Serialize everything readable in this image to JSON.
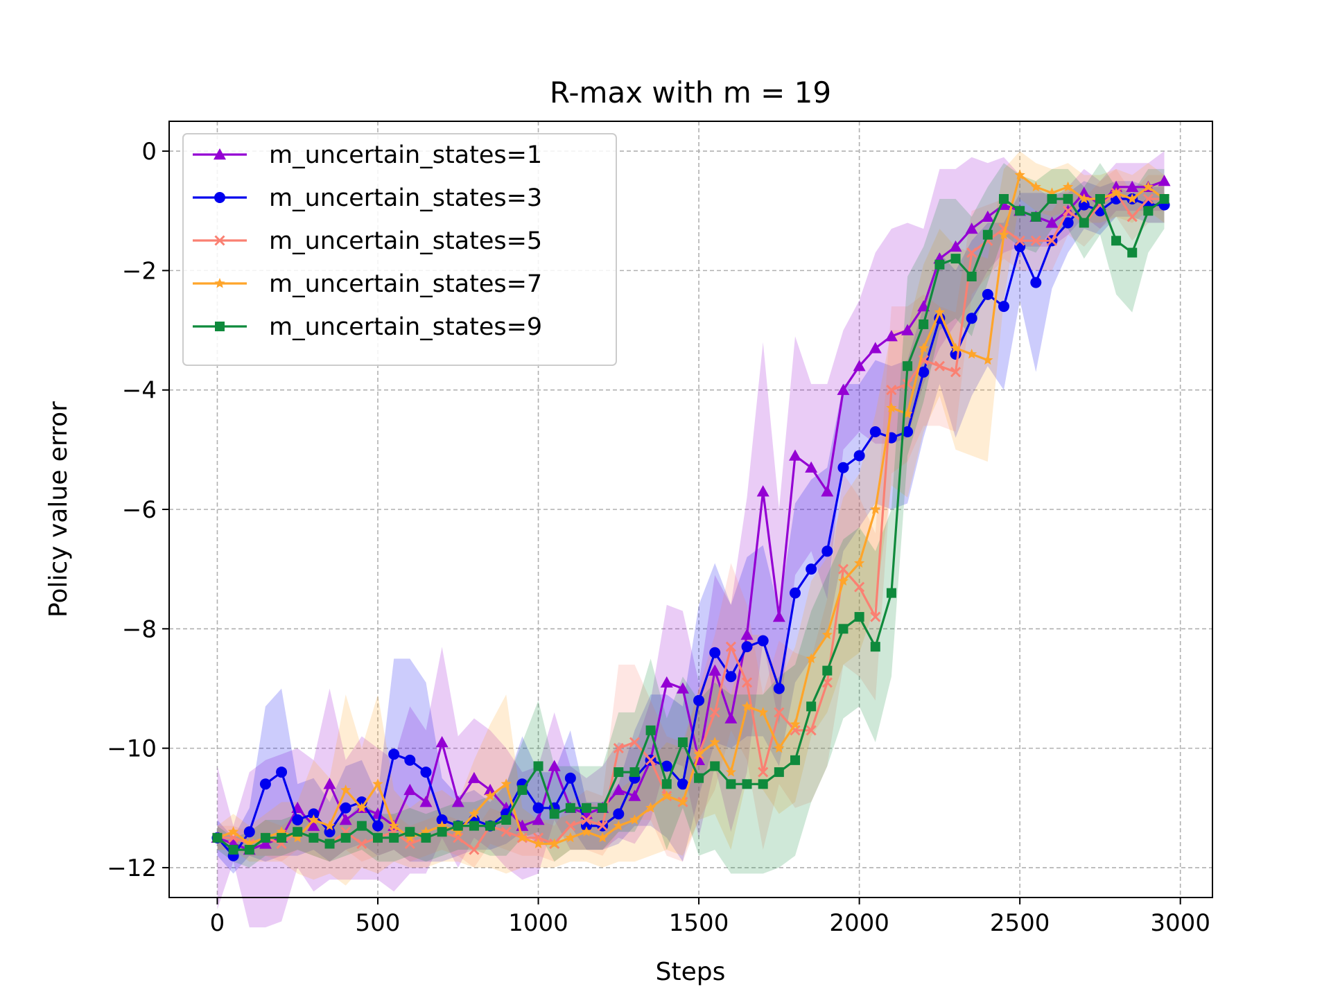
{
  "chart_data": {
    "type": "line",
    "title": "R-max with m = 19",
    "xlabel": "Steps",
    "ylabel": "Policy value error",
    "xlim": [
      -150,
      3100
    ],
    "ylim": [
      -12.5,
      0.5
    ],
    "xticks": [
      0,
      500,
      1000,
      1500,
      2000,
      2500,
      3000
    ],
    "yticks": [
      0,
      -2,
      -4,
      -6,
      -8,
      -10,
      -12
    ],
    "xtick_labels": [
      "0",
      "500",
      "1000",
      "1500",
      "2000",
      "2500",
      "3000"
    ],
    "ytick_labels": [
      "0",
      "−2",
      "−4",
      "−6",
      "−8",
      "−10",
      "−12"
    ],
    "grid": true,
    "legend_position": "top-left",
    "shaded_bands": true,
    "x": [
      0,
      50,
      100,
      150,
      200,
      250,
      300,
      350,
      400,
      450,
      500,
      550,
      600,
      650,
      700,
      750,
      800,
      850,
      900,
      950,
      1000,
      1050,
      1100,
      1150,
      1200,
      1250,
      1300,
      1350,
      1400,
      1450,
      1500,
      1550,
      1600,
      1650,
      1700,
      1750,
      1800,
      1850,
      1900,
      1950,
      2000,
      2050,
      2100,
      2150,
      2200,
      2250,
      2300,
      2350,
      2400,
      2450,
      2500,
      2550,
      2600,
      2650,
      2700,
      2750,
      2800,
      2850,
      2900,
      2950
    ],
    "series": [
      {
        "name": "m_uncertain_states=1",
        "color": "#9400d3",
        "marker": "triangle",
        "values": [
          -11.5,
          -11.6,
          -11.7,
          -11.6,
          -11.5,
          -11.0,
          -11.3,
          -10.6,
          -11.2,
          -11.0,
          -11.1,
          -11.3,
          -10.7,
          -10.9,
          -9.9,
          -10.9,
          -10.5,
          -10.7,
          -11.0,
          -11.3,
          -11.2,
          -10.3,
          -11.0,
          -11.1,
          -11.0,
          -10.7,
          -10.8,
          -10.2,
          -8.9,
          -9.0,
          -10.2,
          -8.7,
          -9.5,
          -8.1,
          -5.7,
          -7.8,
          -5.1,
          -5.3,
          -5.7,
          -4.0,
          -3.6,
          -3.3,
          -3.1,
          -3.0,
          -2.6,
          -1.8,
          -1.6,
          -1.3,
          -1.1,
          -0.9,
          -1.0,
          -1.1,
          -1.2,
          -1.0,
          -0.7,
          -0.9,
          -0.6,
          -0.6,
          -0.6,
          -0.5
        ],
        "band": [
          1.2,
          0.3,
          1.3,
          1.4,
          1.4,
          1.0,
          1.1,
          1.6,
          1.0,
          1.2,
          1.1,
          1.1,
          1.4,
          1.2,
          1.6,
          1.1,
          1.0,
          1.0,
          1.0,
          0.9,
          0.9,
          0.9,
          0.7,
          0.6,
          0.7,
          0.8,
          0.8,
          1.0,
          1.3,
          1.3,
          1.3,
          1.6,
          1.9,
          2.3,
          2.5,
          1.8,
          2.0,
          1.4,
          1.8,
          1.0,
          1.1,
          1.6,
          1.8,
          1.8,
          1.3,
          1.5,
          1.3,
          1.2,
          0.9,
          0.8,
          0.6,
          0.5,
          0.4,
          0.4,
          0.4,
          0.4,
          0.4,
          0.4,
          0.4,
          0.5
        ]
      },
      {
        "name": "m_uncertain_states=3",
        "color": "#0000ee",
        "marker": "circle",
        "values": [
          -11.5,
          -11.8,
          -11.4,
          -10.6,
          -10.4,
          -11.2,
          -11.1,
          -11.4,
          -11.0,
          -10.9,
          -11.3,
          -10.1,
          -10.2,
          -10.4,
          -11.2,
          -11.3,
          -11.2,
          -11.3,
          -11.1,
          -10.6,
          -11.0,
          -11.0,
          -10.5,
          -11.3,
          -11.3,
          -11.1,
          -10.5,
          -10.2,
          -10.3,
          -10.6,
          -9.2,
          -8.4,
          -8.8,
          -8.3,
          -8.2,
          -9.0,
          -7.4,
          -7.0,
          -6.7,
          -5.3,
          -5.1,
          -4.7,
          -4.8,
          -4.7,
          -3.7,
          -2.8,
          -3.4,
          -2.8,
          -2.4,
          -2.6,
          -1.6,
          -2.2,
          -1.5,
          -1.2,
          -0.9,
          -1.0,
          -0.8,
          -0.8,
          -0.9,
          -0.9
        ],
        "band": [
          0.3,
          0.3,
          0.4,
          1.3,
          1.4,
          0.6,
          0.6,
          0.5,
          0.7,
          0.7,
          0.5,
          1.6,
          1.7,
          1.5,
          0.7,
          0.5,
          0.5,
          0.4,
          0.5,
          0.8,
          0.6,
          0.6,
          0.8,
          0.4,
          0.4,
          0.5,
          0.8,
          1.1,
          1.2,
          1.3,
          1.6,
          1.5,
          1.2,
          1.5,
          1.6,
          1.3,
          1.5,
          1.5,
          1.4,
          1.4,
          1.2,
          1.2,
          1.2,
          1.2,
          1.1,
          1.1,
          1.4,
          1.3,
          1.2,
          1.4,
          0.9,
          1.5,
          0.8,
          0.5,
          0.4,
          0.4,
          0.3,
          0.3,
          0.3,
          0.3
        ]
      },
      {
        "name": "m_uncertain_states=5",
        "color": "#fa8072",
        "marker": "x",
        "values": [
          -11.5,
          -11.5,
          -11.6,
          -11.5,
          -11.6,
          -11.4,
          -11.5,
          -11.6,
          -11.4,
          -11.6,
          -11.5,
          -11.4,
          -11.6,
          -11.5,
          -11.4,
          -11.5,
          -11.7,
          -11.3,
          -11.4,
          -11.5,
          -11.5,
          -11.6,
          -11.3,
          -11.2,
          -11.3,
          -10.0,
          -9.9,
          -10.2,
          -10.8,
          -10.9,
          -10.1,
          -9.4,
          -8.3,
          -8.9,
          -10.4,
          -9.4,
          -9.7,
          -9.7,
          -8.9,
          -7.0,
          -7.3,
          -7.8,
          -4.0,
          -3.9,
          -3.5,
          -3.6,
          -3.7,
          -1.7,
          -1.5,
          -1.3,
          -1.5,
          -1.5,
          -1.5,
          -1.0,
          -1.2,
          -0.9,
          -0.7,
          -1.1,
          -0.8,
          -0.8
        ],
        "band": [
          0.2,
          0.2,
          0.2,
          0.3,
          0.3,
          0.3,
          0.3,
          0.3,
          0.3,
          0.3,
          0.3,
          0.3,
          0.3,
          0.3,
          0.3,
          0.3,
          0.3,
          0.3,
          0.3,
          0.3,
          0.3,
          0.3,
          0.4,
          0.5,
          0.5,
          1.4,
          1.3,
          1.0,
          1.0,
          1.0,
          1.1,
          1.3,
          1.4,
          1.3,
          1.3,
          1.2,
          1.3,
          1.2,
          1.4,
          1.6,
          1.5,
          1.4,
          1.4,
          1.3,
          1.1,
          1.0,
          1.0,
          0.7,
          0.6,
          0.5,
          0.5,
          0.5,
          0.5,
          0.4,
          0.4,
          0.4,
          0.4,
          0.4,
          0.4,
          0.4
        ]
      },
      {
        "name": "m_uncertain_states=7",
        "color": "#ffa52a",
        "marker": "star",
        "values": [
          -11.5,
          -11.4,
          -11.6,
          -11.5,
          -11.4,
          -11.5,
          -11.2,
          -11.3,
          -10.7,
          -11.0,
          -10.6,
          -11.3,
          -11.5,
          -11.4,
          -11.3,
          -11.4,
          -11.1,
          -10.8,
          -10.6,
          -11.5,
          -11.6,
          -11.6,
          -11.5,
          -11.4,
          -11.5,
          -11.3,
          -11.2,
          -11.0,
          -10.8,
          -10.9,
          -10.1,
          -9.9,
          -10.4,
          -9.3,
          -9.4,
          -10.0,
          -9.6,
          -8.5,
          -8.1,
          -7.2,
          -6.9,
          -6.0,
          -4.3,
          -4.4,
          -3.3,
          -2.7,
          -3.3,
          -3.4,
          -3.5,
          -1.4,
          -0.4,
          -0.6,
          -0.7,
          -0.6,
          -0.8,
          -0.8,
          -0.7,
          -0.8,
          -0.6,
          -0.8
        ],
        "band": [
          0.2,
          0.3,
          0.3,
          0.4,
          0.5,
          0.6,
          1.0,
          0.8,
          1.6,
          1.0,
          1.5,
          0.6,
          0.5,
          0.6,
          0.6,
          0.5,
          0.9,
          1.2,
          1.5,
          0.5,
          0.4,
          0.4,
          0.4,
          0.5,
          0.5,
          0.6,
          0.7,
          0.8,
          0.9,
          0.9,
          1.1,
          1.2,
          1.3,
          1.2,
          1.3,
          1.1,
          1.3,
          1.3,
          1.3,
          1.4,
          1.5,
          1.6,
          1.3,
          1.4,
          1.4,
          1.4,
          1.7,
          1.7,
          1.7,
          1.1,
          0.4,
          0.4,
          0.4,
          0.4,
          0.4,
          0.4,
          0.4,
          0.4,
          0.4,
          0.4
        ]
      },
      {
        "name": "m_uncertain_states=9",
        "color": "#0f8a3c",
        "marker": "square",
        "values": [
          -11.5,
          -11.7,
          -11.7,
          -11.5,
          -11.5,
          -11.4,
          -11.5,
          -11.6,
          -11.5,
          -11.3,
          -11.5,
          -11.5,
          -11.4,
          -11.5,
          -11.4,
          -11.3,
          -11.3,
          -11.3,
          -11.2,
          -10.7,
          -10.3,
          -11.1,
          -11.0,
          -11.0,
          -11.0,
          -10.4,
          -10.4,
          -9.7,
          -10.6,
          -9.9,
          -10.5,
          -10.3,
          -10.6,
          -10.6,
          -10.6,
          -10.4,
          -10.2,
          -9.3,
          -8.7,
          -8.0,
          -7.8,
          -8.3,
          -7.4,
          -3.6,
          -2.9,
          -1.9,
          -1.8,
          -2.1,
          -1.4,
          -0.8,
          -1.0,
          -1.1,
          -0.8,
          -0.8,
          -1.2,
          -0.8,
          -1.5,
          -1.7,
          -1.0,
          -0.8
        ],
        "band": [
          0.2,
          0.2,
          0.3,
          0.3,
          0.3,
          0.3,
          0.3,
          0.3,
          0.3,
          0.4,
          0.4,
          0.4,
          0.4,
          0.4,
          0.4,
          0.4,
          0.4,
          0.5,
          0.6,
          0.8,
          1.1,
          0.8,
          0.7,
          0.7,
          0.7,
          1.0,
          1.0,
          1.2,
          1.1,
          1.1,
          1.3,
          1.4,
          1.5,
          1.5,
          1.5,
          1.6,
          1.6,
          1.6,
          1.6,
          1.5,
          1.5,
          1.6,
          1.4,
          1.5,
          1.3,
          1.1,
          1.0,
          1.0,
          0.8,
          0.6,
          0.6,
          0.6,
          0.5,
          0.5,
          0.6,
          0.6,
          0.9,
          1.0,
          0.7,
          0.5
        ]
      }
    ]
  }
}
